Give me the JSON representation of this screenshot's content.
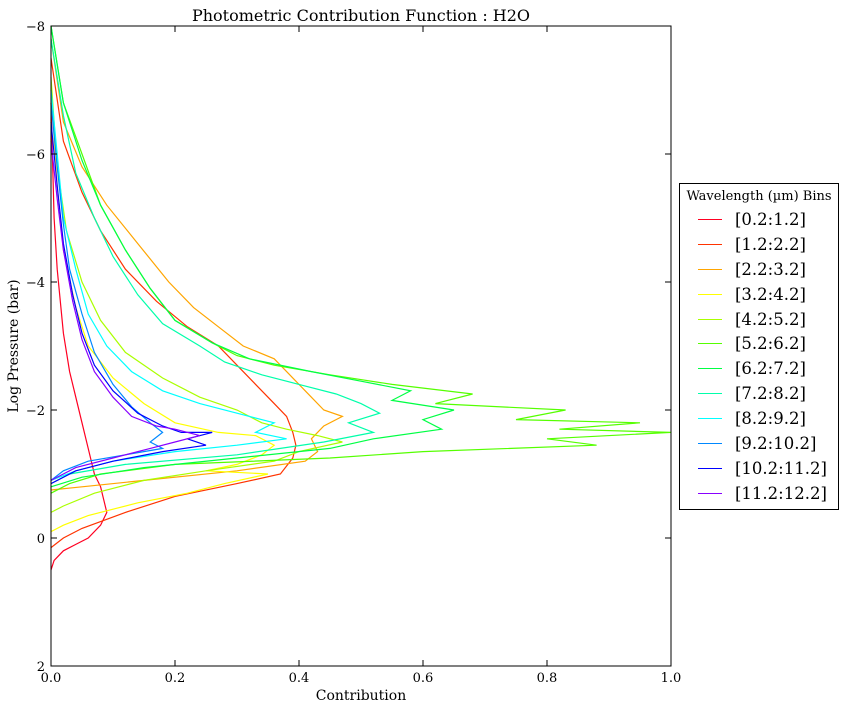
{
  "chart_data": {
    "type": "line",
    "title": "Photometric Contribution Function : H2O",
    "xlabel": "Contribution",
    "ylabel": "Log Pressure (bar)",
    "xlim": [
      0.0,
      1.0
    ],
    "ylim": [
      2,
      -8
    ],
    "y_inverted": true,
    "x_ticks": [
      "0.0",
      "0.2",
      "0.4",
      "0.6",
      "0.8",
      "1.0"
    ],
    "y_ticks": [
      "−8",
      "−6",
      "−4",
      "−2",
      "0",
      "2"
    ],
    "legend": {
      "title": "Wavelength (µm) Bins",
      "placement": "center-right outside"
    },
    "series": [
      {
        "name": "[0.2:1.2]",
        "color": "#ff0022",
        "points": [
          [
            0.0,
            -6.8
          ],
          [
            0.005,
            -5.0
          ],
          [
            0.01,
            -4.2
          ],
          [
            0.02,
            -3.2
          ],
          [
            0.03,
            -2.6
          ],
          [
            0.04,
            -2.2
          ],
          [
            0.05,
            -1.8
          ],
          [
            0.06,
            -1.4
          ],
          [
            0.07,
            -1.0
          ],
          [
            0.08,
            -0.8
          ],
          [
            0.085,
            -0.6
          ],
          [
            0.09,
            -0.4
          ],
          [
            0.08,
            -0.2
          ],
          [
            0.06,
            0.0
          ],
          [
            0.04,
            0.1
          ],
          [
            0.02,
            0.2
          ],
          [
            0.005,
            0.35
          ],
          [
            0.0,
            0.5
          ]
        ]
      },
      {
        "name": "[1.2:2.2]",
        "color": "#ff3300",
        "points": [
          [
            0.0,
            -7.5
          ],
          [
            0.02,
            -6.2
          ],
          [
            0.05,
            -5.4
          ],
          [
            0.08,
            -4.8
          ],
          [
            0.12,
            -4.2
          ],
          [
            0.17,
            -3.7
          ],
          [
            0.22,
            -3.3
          ],
          [
            0.27,
            -3.0
          ],
          [
            0.3,
            -2.7
          ],
          [
            0.33,
            -2.4
          ],
          [
            0.36,
            -2.1
          ],
          [
            0.38,
            -1.9
          ],
          [
            0.39,
            -1.65
          ],
          [
            0.395,
            -1.45
          ],
          [
            0.39,
            -1.25
          ],
          [
            0.37,
            -1.0
          ],
          [
            0.3,
            -0.85
          ],
          [
            0.2,
            -0.65
          ],
          [
            0.12,
            -0.4
          ],
          [
            0.05,
            -0.15
          ],
          [
            0.02,
            0.0
          ],
          [
            0.0,
            0.15
          ]
        ]
      },
      {
        "name": "[2.2:3.2]",
        "color": "#ffa500",
        "points": [
          [
            0.0,
            -7.8
          ],
          [
            0.02,
            -6.5
          ],
          [
            0.05,
            -5.8
          ],
          [
            0.09,
            -5.2
          ],
          [
            0.14,
            -4.6
          ],
          [
            0.19,
            -4.0
          ],
          [
            0.23,
            -3.6
          ],
          [
            0.27,
            -3.3
          ],
          [
            0.31,
            -3.0
          ],
          [
            0.36,
            -2.8
          ],
          [
            0.38,
            -2.6
          ],
          [
            0.41,
            -2.3
          ],
          [
            0.44,
            -2.0
          ],
          [
            0.47,
            -1.9
          ],
          [
            0.44,
            -1.75
          ],
          [
            0.42,
            -1.55
          ],
          [
            0.43,
            -1.35
          ],
          [
            0.41,
            -1.2
          ],
          [
            0.3,
            -1.05
          ],
          [
            0.15,
            -0.9
          ],
          [
            0.05,
            -0.8
          ],
          [
            0.0,
            -0.75
          ]
        ]
      },
      {
        "name": "[3.2:4.2]",
        "color": "#ffff00",
        "points": [
          [
            0.0,
            -7.0
          ],
          [
            0.01,
            -5.5
          ],
          [
            0.02,
            -4.5
          ],
          [
            0.04,
            -3.6
          ],
          [
            0.06,
            -3.0
          ],
          [
            0.1,
            -2.5
          ],
          [
            0.15,
            -2.1
          ],
          [
            0.2,
            -1.8
          ],
          [
            0.27,
            -1.65
          ],
          [
            0.33,
            -1.6
          ],
          [
            0.36,
            -1.45
          ],
          [
            0.34,
            -1.3
          ],
          [
            0.3,
            -1.15
          ],
          [
            0.25,
            -1.05
          ],
          [
            0.35,
            -1.0
          ],
          [
            0.28,
            -0.85
          ],
          [
            0.22,
            -0.7
          ],
          [
            0.14,
            -0.55
          ],
          [
            0.06,
            -0.35
          ],
          [
            0.02,
            -0.2
          ],
          [
            0.0,
            -0.1
          ]
        ]
      },
      {
        "name": "[4.2:5.2]",
        "color": "#aaff00",
        "points": [
          [
            0.0,
            -7.2
          ],
          [
            0.01,
            -5.8
          ],
          [
            0.025,
            -4.8
          ],
          [
            0.05,
            -4.0
          ],
          [
            0.08,
            -3.4
          ],
          [
            0.12,
            -2.9
          ],
          [
            0.18,
            -2.5
          ],
          [
            0.24,
            -2.2
          ],
          [
            0.3,
            -2.0
          ],
          [
            0.34,
            -1.8
          ],
          [
            0.38,
            -1.7
          ],
          [
            0.43,
            -1.6
          ],
          [
            0.47,
            -1.5
          ],
          [
            0.4,
            -1.35
          ],
          [
            0.36,
            -1.2
          ],
          [
            0.25,
            -1.05
          ],
          [
            0.15,
            -0.9
          ],
          [
            0.07,
            -0.7
          ],
          [
            0.02,
            -0.5
          ],
          [
            0.0,
            -0.4
          ]
        ]
      },
      {
        "name": "[5.2:6.2]",
        "color": "#55ff00",
        "points": [
          [
            0.0,
            -8.0
          ],
          [
            0.02,
            -6.8
          ],
          [
            0.05,
            -6.0
          ],
          [
            0.08,
            -5.2
          ],
          [
            0.12,
            -4.5
          ],
          [
            0.16,
            -3.9
          ],
          [
            0.2,
            -3.4
          ],
          [
            0.26,
            -3.05
          ],
          [
            0.3,
            -2.85
          ],
          [
            0.36,
            -2.7
          ],
          [
            0.45,
            -2.55
          ],
          [
            0.55,
            -2.4
          ],
          [
            0.68,
            -2.25
          ],
          [
            0.62,
            -2.1
          ],
          [
            0.83,
            -2.0
          ],
          [
            0.75,
            -1.85
          ],
          [
            0.95,
            -1.8
          ],
          [
            0.82,
            -1.7
          ],
          [
            1.0,
            -1.65
          ],
          [
            0.8,
            -1.55
          ],
          [
            0.88,
            -1.45
          ],
          [
            0.6,
            -1.35
          ],
          [
            0.45,
            -1.25
          ],
          [
            0.2,
            -1.15
          ],
          [
            0.08,
            -1.0
          ],
          [
            0.03,
            -0.85
          ],
          [
            0.0,
            -0.7
          ]
        ]
      },
      {
        "name": "[6.2:7.2]",
        "color": "#00ff44",
        "points": [
          [
            0.0,
            -8.0
          ],
          [
            0.02,
            -6.8
          ],
          [
            0.05,
            -5.9
          ],
          [
            0.08,
            -5.2
          ],
          [
            0.12,
            -4.5
          ],
          [
            0.16,
            -3.9
          ],
          [
            0.2,
            -3.4
          ],
          [
            0.26,
            -3.05
          ],
          [
            0.32,
            -2.8
          ],
          [
            0.42,
            -2.6
          ],
          [
            0.5,
            -2.45
          ],
          [
            0.58,
            -2.3
          ],
          [
            0.55,
            -2.15
          ],
          [
            0.65,
            -2.0
          ],
          [
            0.6,
            -1.85
          ],
          [
            0.63,
            -1.7
          ],
          [
            0.52,
            -1.55
          ],
          [
            0.45,
            -1.4
          ],
          [
            0.3,
            -1.25
          ],
          [
            0.15,
            -1.1
          ],
          [
            0.05,
            -0.95
          ],
          [
            0.0,
            -0.8
          ]
        ]
      },
      {
        "name": "[7.2:8.2]",
        "color": "#00ffaa",
        "points": [
          [
            0.0,
            -7.8
          ],
          [
            0.02,
            -6.6
          ],
          [
            0.04,
            -5.7
          ],
          [
            0.07,
            -5.0
          ],
          [
            0.1,
            -4.4
          ],
          [
            0.14,
            -3.8
          ],
          [
            0.18,
            -3.35
          ],
          [
            0.24,
            -3.0
          ],
          [
            0.28,
            -2.75
          ],
          [
            0.34,
            -2.55
          ],
          [
            0.4,
            -2.4
          ],
          [
            0.46,
            -2.25
          ],
          [
            0.5,
            -2.1
          ],
          [
            0.53,
            -1.95
          ],
          [
            0.48,
            -1.8
          ],
          [
            0.52,
            -1.65
          ],
          [
            0.44,
            -1.5
          ],
          [
            0.3,
            -1.3
          ],
          [
            0.12,
            -1.15
          ],
          [
            0.03,
            -1.0
          ],
          [
            0.0,
            -0.85
          ]
        ]
      },
      {
        "name": "[8.2:9.2]",
        "color": "#00ffff",
        "points": [
          [
            0.0,
            -7.0
          ],
          [
            0.01,
            -6.0
          ],
          [
            0.02,
            -5.0
          ],
          [
            0.04,
            -4.2
          ],
          [
            0.06,
            -3.5
          ],
          [
            0.09,
            -3.0
          ],
          [
            0.13,
            -2.6
          ],
          [
            0.18,
            -2.3
          ],
          [
            0.24,
            -2.1
          ],
          [
            0.3,
            -1.95
          ],
          [
            0.36,
            -1.8
          ],
          [
            0.33,
            -1.65
          ],
          [
            0.38,
            -1.55
          ],
          [
            0.3,
            -1.45
          ],
          [
            0.2,
            -1.35
          ],
          [
            0.1,
            -1.2
          ],
          [
            0.04,
            -1.05
          ],
          [
            0.0,
            -0.9
          ]
        ]
      },
      {
        "name": "[9.2:10.2]",
        "color": "#0088ff",
        "points": [
          [
            0.0,
            -6.8
          ],
          [
            0.01,
            -5.8
          ],
          [
            0.02,
            -4.9
          ],
          [
            0.03,
            -4.2
          ],
          [
            0.05,
            -3.5
          ],
          [
            0.07,
            -2.9
          ],
          [
            0.1,
            -2.4
          ],
          [
            0.13,
            -2.05
          ],
          [
            0.16,
            -1.8
          ],
          [
            0.18,
            -1.65
          ],
          [
            0.16,
            -1.5
          ],
          [
            0.18,
            -1.4
          ],
          [
            0.12,
            -1.3
          ],
          [
            0.06,
            -1.2
          ],
          [
            0.02,
            -1.05
          ],
          [
            0.0,
            -0.9
          ]
        ]
      },
      {
        "name": "[10.2:11.2]",
        "color": "#0000ff",
        "points": [
          [
            0.0,
            -6.5
          ],
          [
            0.01,
            -5.5
          ],
          [
            0.02,
            -4.6
          ],
          [
            0.035,
            -3.8
          ],
          [
            0.05,
            -3.2
          ],
          [
            0.07,
            -2.7
          ],
          [
            0.1,
            -2.3
          ],
          [
            0.14,
            -1.95
          ],
          [
            0.18,
            -1.75
          ],
          [
            0.21,
            -1.65
          ],
          [
            0.26,
            -1.65
          ],
          [
            0.22,
            -1.55
          ],
          [
            0.25,
            -1.45
          ],
          [
            0.18,
            -1.35
          ],
          [
            0.1,
            -1.2
          ],
          [
            0.04,
            -1.05
          ],
          [
            0.0,
            -0.85
          ]
        ]
      },
      {
        "name": "[11.2:12.2]",
        "color": "#8800ff",
        "points": [
          [
            0.0,
            -6.2
          ],
          [
            0.01,
            -5.3
          ],
          [
            0.02,
            -4.5
          ],
          [
            0.035,
            -3.7
          ],
          [
            0.05,
            -3.1
          ],
          [
            0.07,
            -2.6
          ],
          [
            0.1,
            -2.2
          ],
          [
            0.13,
            -1.9
          ],
          [
            0.17,
            -1.75
          ],
          [
            0.2,
            -1.7
          ],
          [
            0.24,
            -1.6
          ],
          [
            0.2,
            -1.5
          ],
          [
            0.16,
            -1.4
          ],
          [
            0.1,
            -1.25
          ],
          [
            0.04,
            -1.1
          ],
          [
            0.0,
            -0.9
          ]
        ]
      }
    ]
  }
}
